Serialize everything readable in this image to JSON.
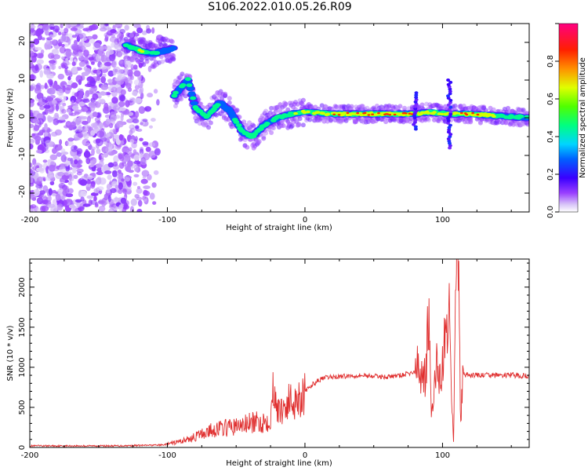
{
  "title": "S106.2022.010.05.26.R09",
  "chart_data": [
    {
      "type": "heatmap",
      "xlabel": "Height of straight line (km)",
      "ylabel": "Frequency (Hz)",
      "xlim": [
        -200,
        163
      ],
      "ylim": [
        -25,
        25
      ],
      "x_ticks": [
        "-200",
        "-100",
        "0",
        "100"
      ],
      "y_ticks": [
        "-20",
        "-10",
        "0",
        "10",
        "20"
      ],
      "colorbar": {
        "label": "Normalized spectral amplitude",
        "range": [
          0.0,
          1.0
        ],
        "ticks": [
          "0.0",
          "0.2",
          "0.4",
          "0.6",
          "0.8"
        ],
        "colors": [
          "#ffffff",
          "#b98cf5",
          "#7a00ff",
          "#2200ff",
          "#0088ff",
          "#00e5ff",
          "#00ff66",
          "#88ff00",
          "#ffee00",
          "#ff8800",
          "#ff0000",
          "#ff0088"
        ]
      },
      "ridge": [
        {
          "x": -128,
          "y": 19,
          "a": 0.5
        },
        {
          "x": -118,
          "y": 17.5,
          "a": 0.55
        },
        {
          "x": -110,
          "y": 17,
          "a": 0.45
        },
        {
          "x": -95,
          "y": 18.5,
          "a": 0.3
        },
        {
          "x": -105,
          "y": 9,
          "a": 0.4
        },
        {
          "x": -95,
          "y": 6,
          "a": 0.45
        },
        {
          "x": -85,
          "y": 10,
          "a": 0.4
        },
        {
          "x": -80,
          "y": 3,
          "a": 0.5
        },
        {
          "x": -72,
          "y": 0,
          "a": 0.5
        },
        {
          "x": -62,
          "y": 4,
          "a": 0.45
        },
        {
          "x": -55,
          "y": 2,
          "a": 0.45
        },
        {
          "x": -50,
          "y": -1,
          "a": 0.5
        },
        {
          "x": -45,
          "y": -4,
          "a": 0.45
        },
        {
          "x": -38,
          "y": -5,
          "a": 0.5
        },
        {
          "x": -30,
          "y": -2,
          "a": 0.45
        },
        {
          "x": -20,
          "y": 0,
          "a": 0.45
        },
        {
          "x": -10,
          "y": 1,
          "a": 0.5
        },
        {
          "x": 0,
          "y": 1.5,
          "a": 0.6
        },
        {
          "x": 20,
          "y": 1,
          "a": 0.7
        },
        {
          "x": 40,
          "y": 1,
          "a": 0.75
        },
        {
          "x": 60,
          "y": 1,
          "a": 0.75
        },
        {
          "x": 80,
          "y": 1,
          "a": 0.7
        },
        {
          "x": 90,
          "y": 1.5,
          "a": 0.65
        },
        {
          "x": 105,
          "y": 1,
          "a": 0.6
        },
        {
          "x": 120,
          "y": 1,
          "a": 0.8
        },
        {
          "x": 140,
          "y": 0.5,
          "a": 0.55
        },
        {
          "x": 163,
          "y": 0,
          "a": 0.45
        }
      ]
    },
    {
      "type": "line",
      "xlabel": "Height of straight line (km)",
      "ylabel": "SNR (10 * v/v)",
      "xlim": [
        -200,
        163
      ],
      "ylim": [
        0,
        2350
      ],
      "x_ticks": [
        "-200",
        "-100",
        "0",
        "100"
      ],
      "y_ticks": [
        "0",
        "500",
        "1000",
        "1500",
        "2000"
      ],
      "color": "#e03030",
      "series": [
        {
          "x": [
            -200,
            -180,
            -160,
            -140,
            -120,
            -105,
            -100,
            -95,
            -90,
            -85,
            -80,
            -75,
            -70,
            -65,
            -60,
            -55,
            -50,
            -45,
            -40,
            -35,
            -30,
            -25,
            -22,
            -20,
            -15,
            -10,
            -5,
            0,
            5,
            10,
            15,
            20,
            30,
            40,
            50,
            60,
            70,
            75,
            80,
            85,
            88,
            90,
            92,
            95,
            100,
            102,
            105,
            108,
            110,
            112,
            113,
            115,
            120,
            130,
            140,
            150,
            163
          ],
          "y": [
            20,
            20,
            20,
            20,
            25,
            30,
            40,
            60,
            80,
            100,
            130,
            170,
            200,
            230,
            240,
            250,
            260,
            280,
            300,
            310,
            320,
            370,
            900,
            420,
            520,
            580,
            620,
            690,
            780,
            840,
            870,
            880,
            890,
            900,
            890,
            880,
            900,
            920,
            940,
            950,
            940,
            1700,
            300,
            1000,
            950,
            1500,
            1600,
            100,
            2350,
            1900,
            300,
            900,
            900,
            900,
            900,
            900,
            890
          ]
        }
      ]
    }
  ]
}
